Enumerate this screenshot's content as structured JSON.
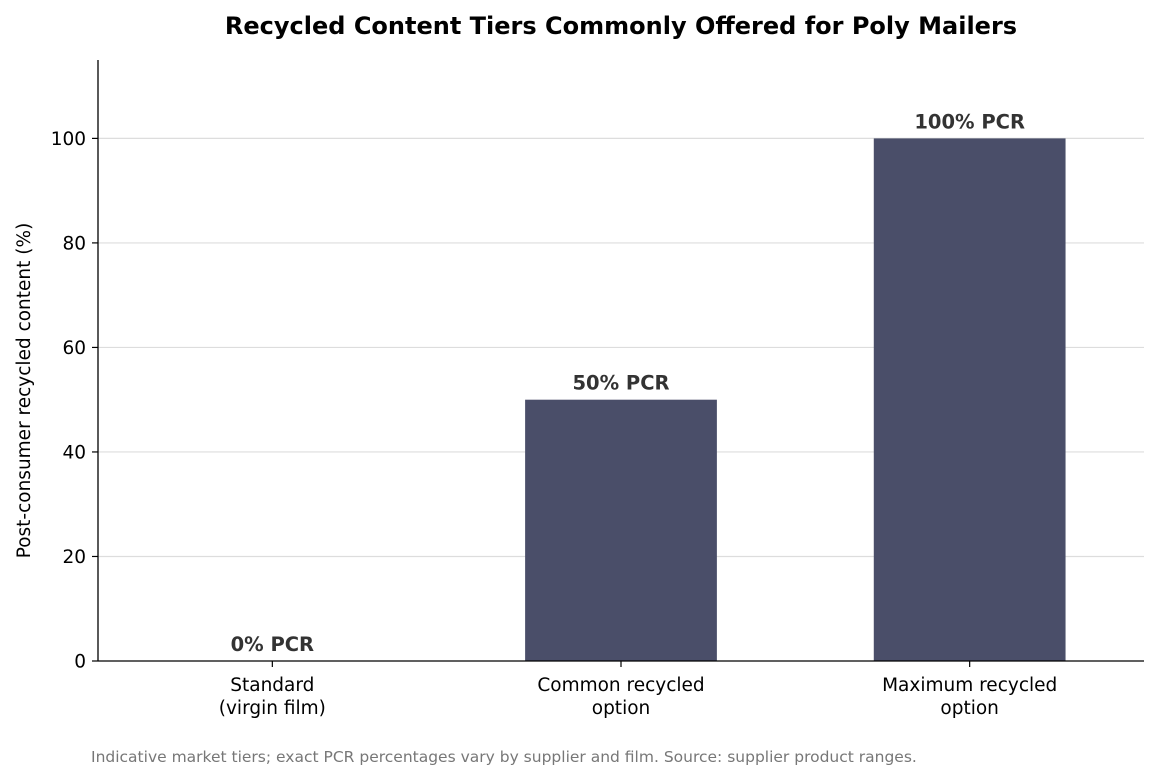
{
  "chart_data": {
    "type": "bar",
    "title": "Recycled Content Tiers Commonly Offered for Poly Mailers",
    "xlabel": "",
    "ylabel": "Post-consumer recycled content (%)",
    "ylim": [
      0,
      115
    ],
    "yticks": [
      0,
      20,
      40,
      60,
      80,
      100
    ],
    "grid": "horizontal",
    "categories": [
      [
        "Standard",
        "(virgin film)"
      ],
      [
        "Common recycled",
        "option"
      ],
      [
        "Maximum recycled",
        "option"
      ]
    ],
    "values": [
      0,
      50,
      100
    ],
    "value_labels": [
      "0% PCR",
      "50% PCR",
      "100% PCR"
    ],
    "bar_color": "#4a4e69",
    "grid_color": "#dddddd",
    "footnote": "Indicative market tiers; exact PCR percentages vary by supplier and film. Source: supplier product ranges."
  }
}
